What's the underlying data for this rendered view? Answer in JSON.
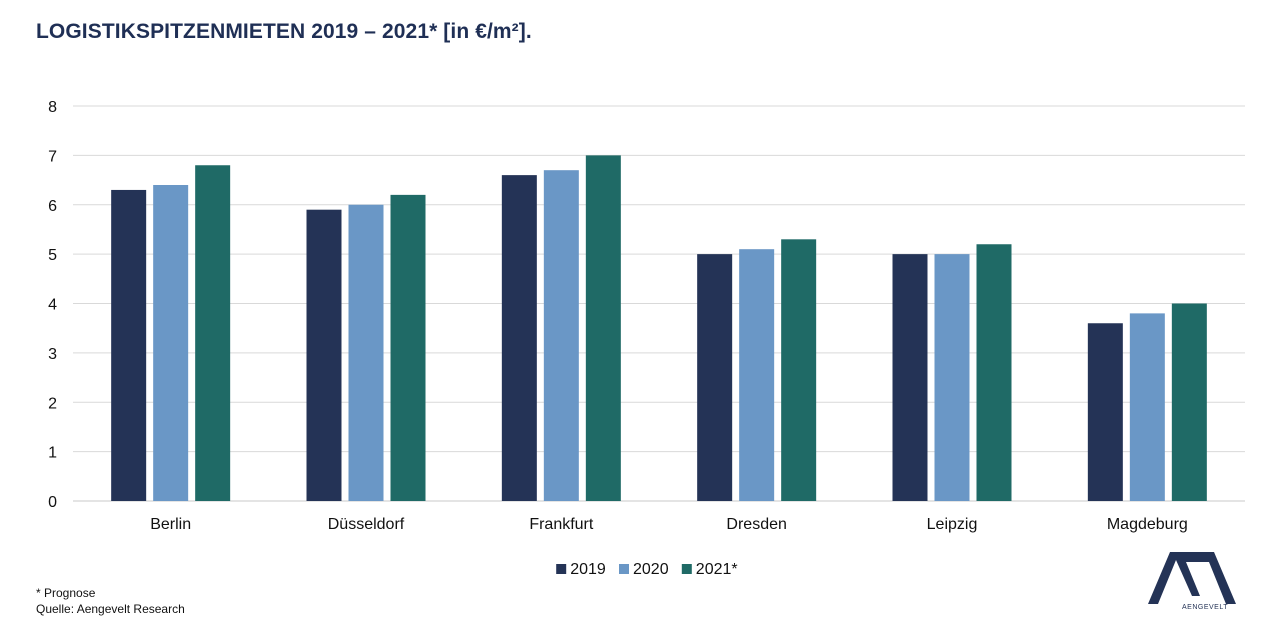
{
  "title": "LOGISTIKSPITZENMIETEN 2019 – 2021* [in €/m²].",
  "footnote": "* Prognose",
  "source": "Quelle: Aengevelt Research",
  "logo": {
    "text": "AENGEVELT",
    "color": "#243356"
  },
  "chart_data": {
    "type": "bar",
    "title": "LOGISTIKSPITZENMIETEN 2019 – 2021* [in €/m²].",
    "categories": [
      "Berlin",
      "Düsseldorf",
      "Frankfurt",
      "Dresden",
      "Leipzig",
      "Magdeburg"
    ],
    "series": [
      {
        "name": "2019",
        "color": "#243356",
        "values": [
          6.3,
          5.9,
          6.6,
          5.0,
          5.0,
          3.6
        ]
      },
      {
        "name": "2020",
        "color": "#6a97c6",
        "values": [
          6.4,
          6.0,
          6.7,
          5.1,
          5.0,
          3.8
        ]
      },
      {
        "name": "2021*",
        "color": "#1f6a66",
        "values": [
          6.8,
          6.2,
          7.0,
          5.3,
          5.2,
          4.0
        ]
      }
    ],
    "ylim": [
      0,
      8
    ],
    "yticks": [
      0,
      1,
      2,
      3,
      4,
      5,
      6,
      7,
      8
    ],
    "grid": true,
    "legend_position": "bottom-center",
    "xlabel": "",
    "ylabel": ""
  }
}
